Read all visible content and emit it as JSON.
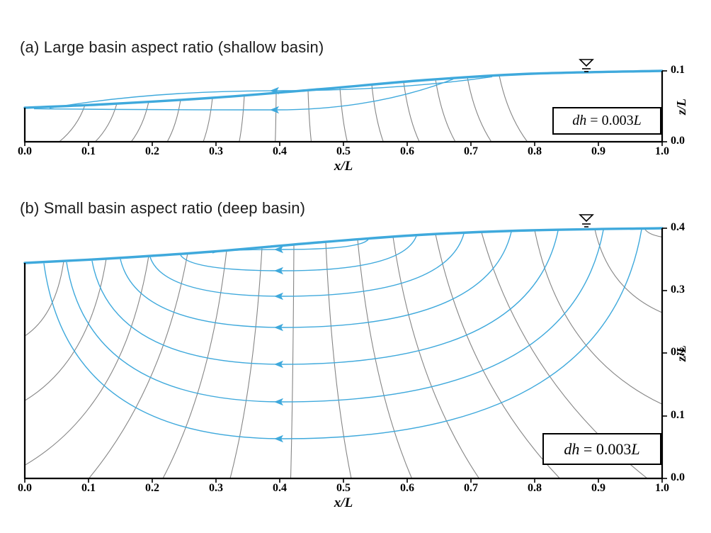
{
  "panel_a": {
    "title": "(a) Large basin aspect ratio (shallow basin)",
    "x_axis": {
      "label": "x/L",
      "ticks": [
        "0.0",
        "0.1",
        "0.2",
        "0.3",
        "0.4",
        "0.5",
        "0.6",
        "0.7",
        "0.8",
        "0.9",
        "1.0"
      ]
    },
    "z_axis": {
      "label": "z/L",
      "ticks": [
        "0.1",
        "0.0"
      ]
    },
    "head_drop": {
      "v1": "dh",
      "mid": " = 0.003",
      "v2": "L"
    }
  },
  "panel_b": {
    "title": "(b) Small basin aspect ratio (deep basin)",
    "x_axis": {
      "label": "x/L",
      "ticks": [
        "0.0",
        "0.1",
        "0.2",
        "0.3",
        "0.4",
        "0.5",
        "0.6",
        "0.7",
        "0.8",
        "0.9",
        "1.0"
      ]
    },
    "z_axis": {
      "label": "z/L",
      "ticks": [
        "0.4",
        "0.3",
        "0.2",
        "0.1",
        "0.0"
      ]
    },
    "head_drop": {
      "v1": "dh",
      "mid": " = 0.003",
      "v2": "L"
    }
  },
  "colors": {
    "flow_line": "#3fa9dc",
    "equipotential": "#858585",
    "axis": "#000000",
    "background": "#ffffff"
  }
}
